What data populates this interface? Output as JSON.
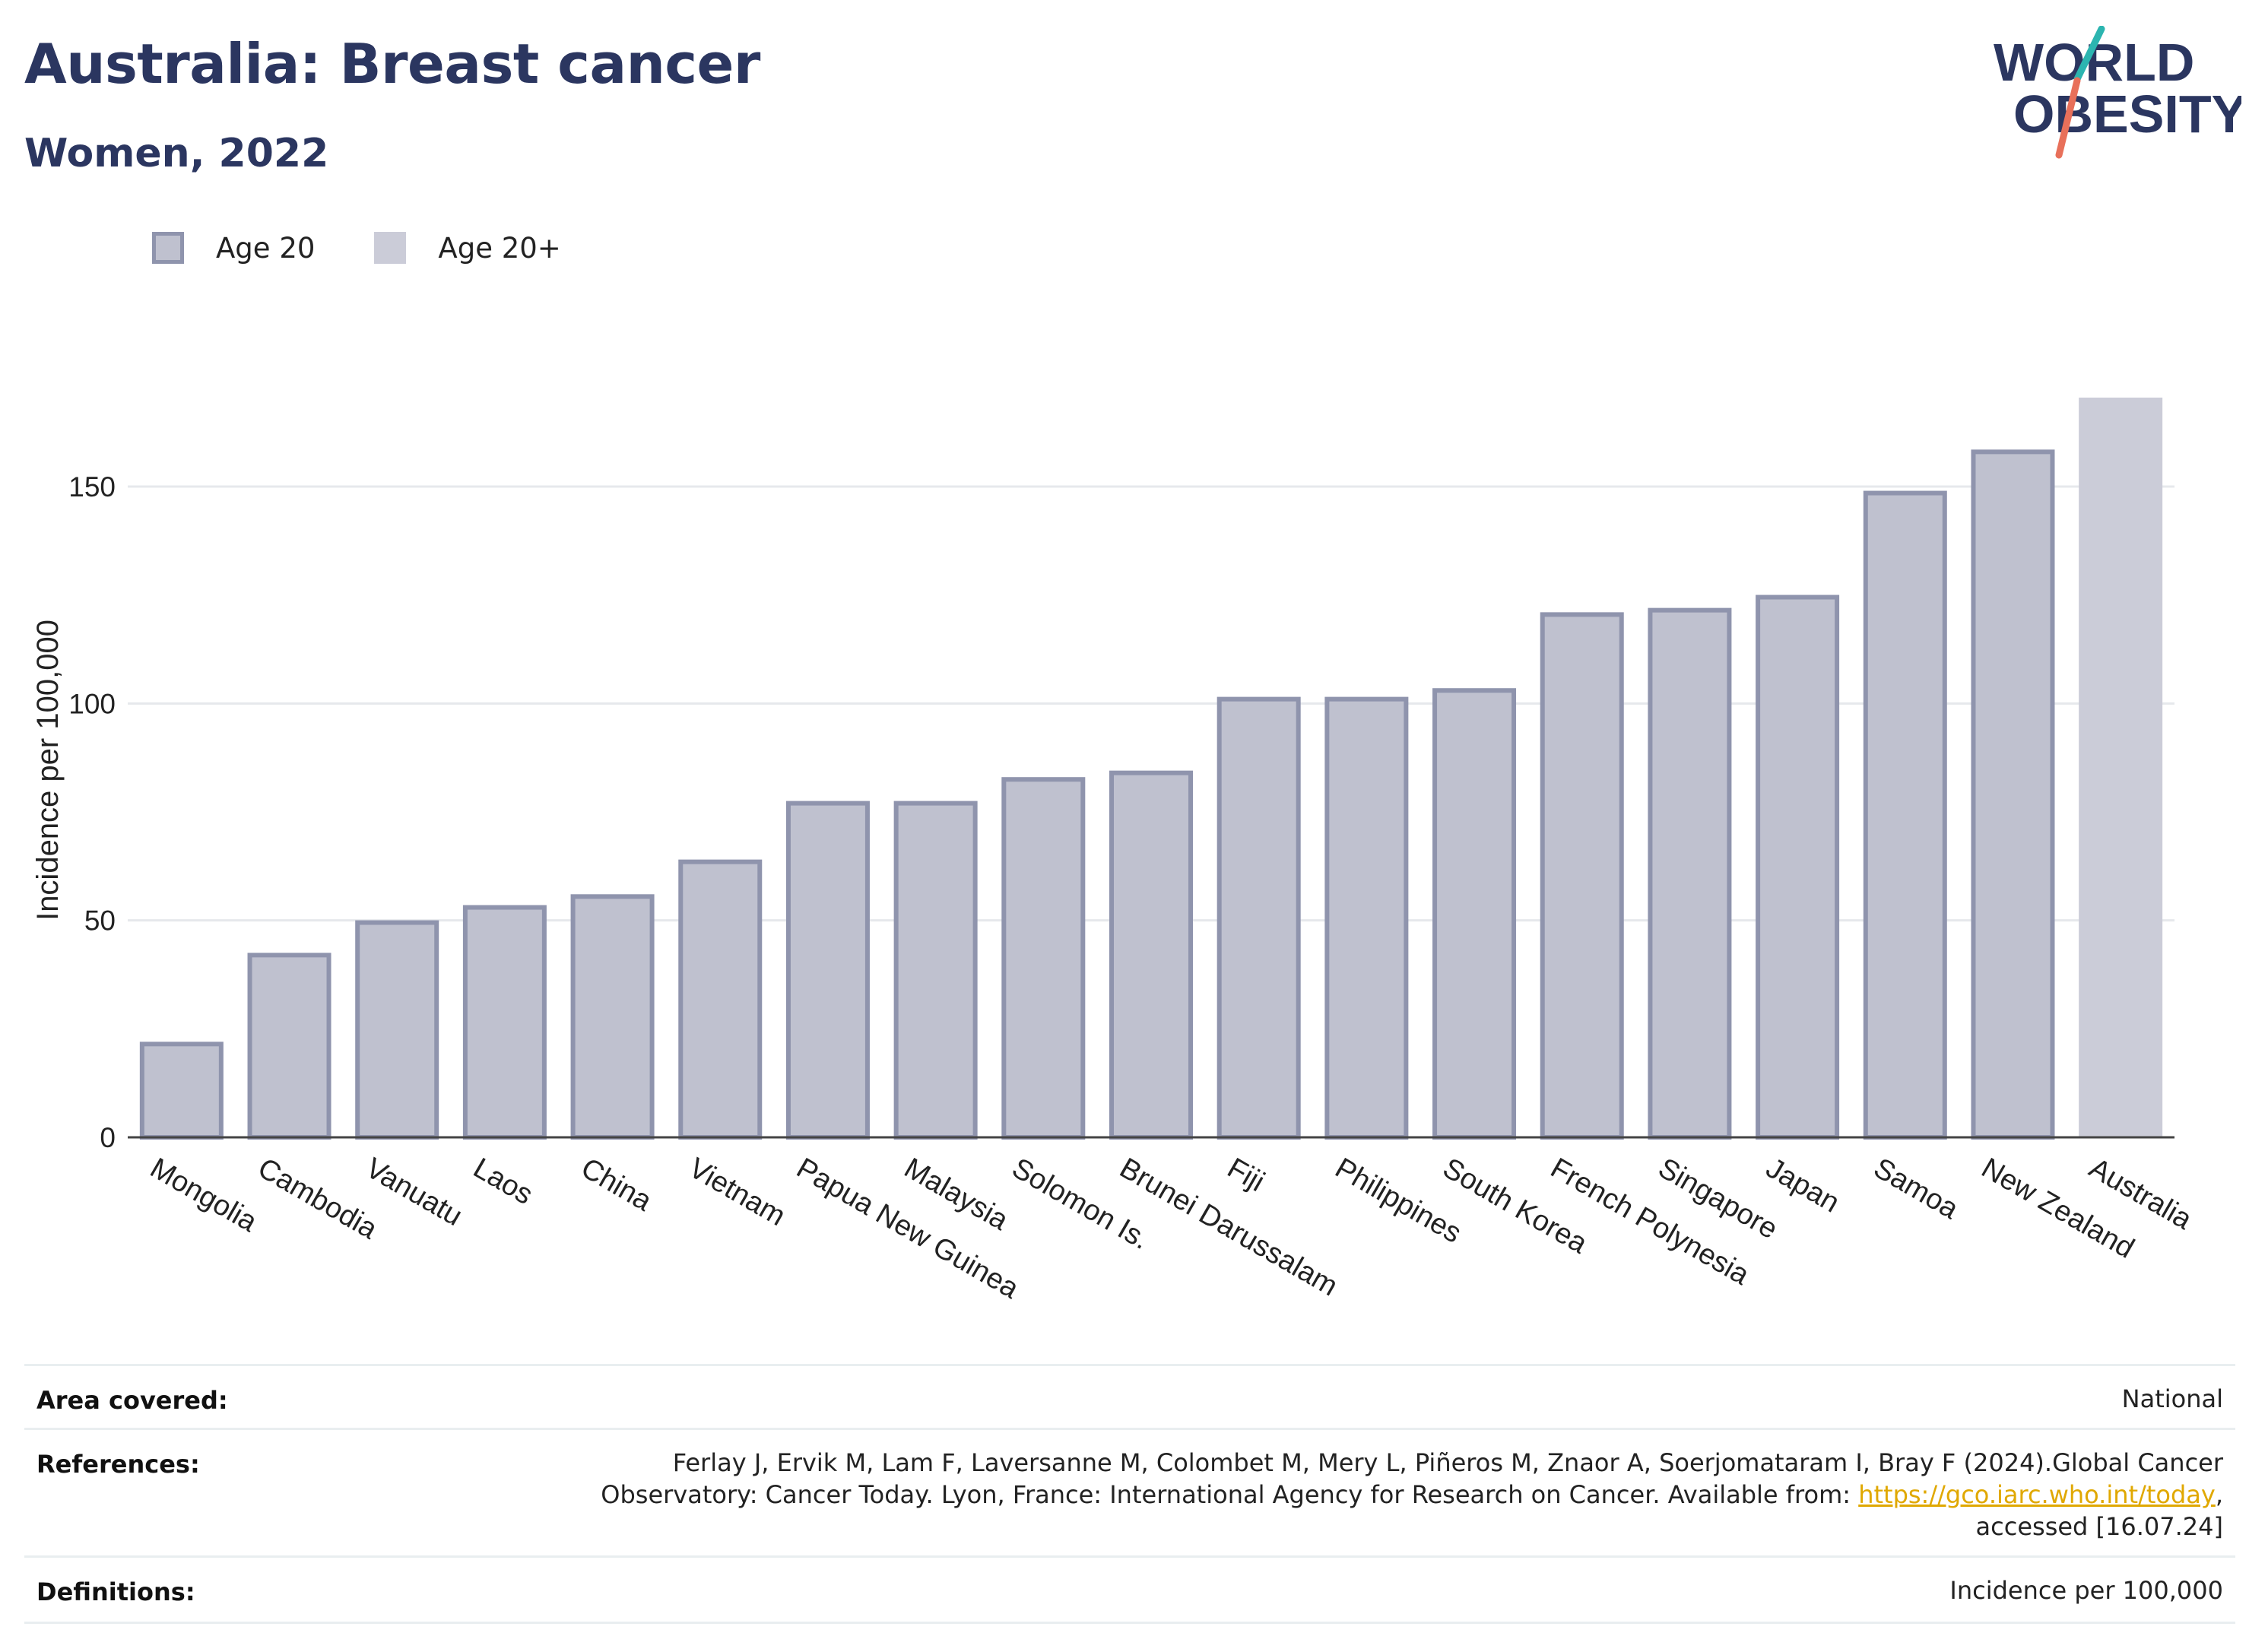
{
  "header": {
    "title": "Australia: Breast cancer",
    "subtitle": "Women, 2022",
    "logo_text_line1": "WORLD",
    "logo_text_line2": "OBESITY"
  },
  "legend": {
    "items": [
      {
        "label": "Age 20"
      },
      {
        "label": "Age 20+"
      }
    ]
  },
  "colors": {
    "title": "#2b3660",
    "bar_fill": "#bfc1cf",
    "bar_stroke": "#8f94ad",
    "highlight_fill": "#cbccd8",
    "grid": "#e6e8ec",
    "logo_teal": "#2cb5b0",
    "logo_coral": "#e8705a",
    "link": "#e0a800"
  },
  "chart_data": {
    "type": "bar",
    "ylabel": "Incidence per 100,000",
    "xlabel": "",
    "ylim": [
      0,
      175
    ],
    "yticks": [
      0,
      50,
      100,
      150
    ],
    "grid": true,
    "legend_position": "top-left",
    "categories": [
      "Mongolia",
      "Cambodia",
      "Vanuatu",
      "Laos",
      "China",
      "Vietnam",
      "Papua New Guinea",
      "Malaysia",
      "Solomon Is.",
      "Brunei Darussalam",
      "Fiji",
      "Philippines",
      "South Korea",
      "French Polynesia",
      "Singapore",
      "Japan",
      "Samoa",
      "New Zealand",
      "Australia"
    ],
    "series": [
      {
        "name": "Age 20",
        "values": [
          21.5,
          42,
          49.5,
          53,
          55.5,
          63.5,
          77,
          77,
          82.5,
          84,
          101,
          101,
          103,
          120.5,
          121.5,
          124.5,
          148.5,
          158,
          null
        ]
      },
      {
        "name": "Age 20+",
        "values": [
          null,
          null,
          null,
          null,
          null,
          null,
          null,
          null,
          null,
          null,
          null,
          null,
          null,
          null,
          null,
          null,
          null,
          null,
          170.5
        ]
      }
    ]
  },
  "info": {
    "area_label": "Area covered:",
    "area_value": "National",
    "references_label": "References:",
    "references_line1": "Ferlay J, Ervik M, Lam F, Laversanne M, Colombet M, Mery L, Piñeros M, Znaor A, Soerjomataram I, Bray F (2024).Global Cancer",
    "references_line2_pre": "Observatory: Cancer Today. Lyon, France: International Agency for Research on Cancer. Available from: ",
    "references_link": "https://gco.iarc.who.int/today",
    "references_line2_post": ",",
    "references_line3": "accessed [16.07.24]",
    "definitions_label": "Definitions:",
    "definitions_value": "Incidence per 100,000"
  }
}
